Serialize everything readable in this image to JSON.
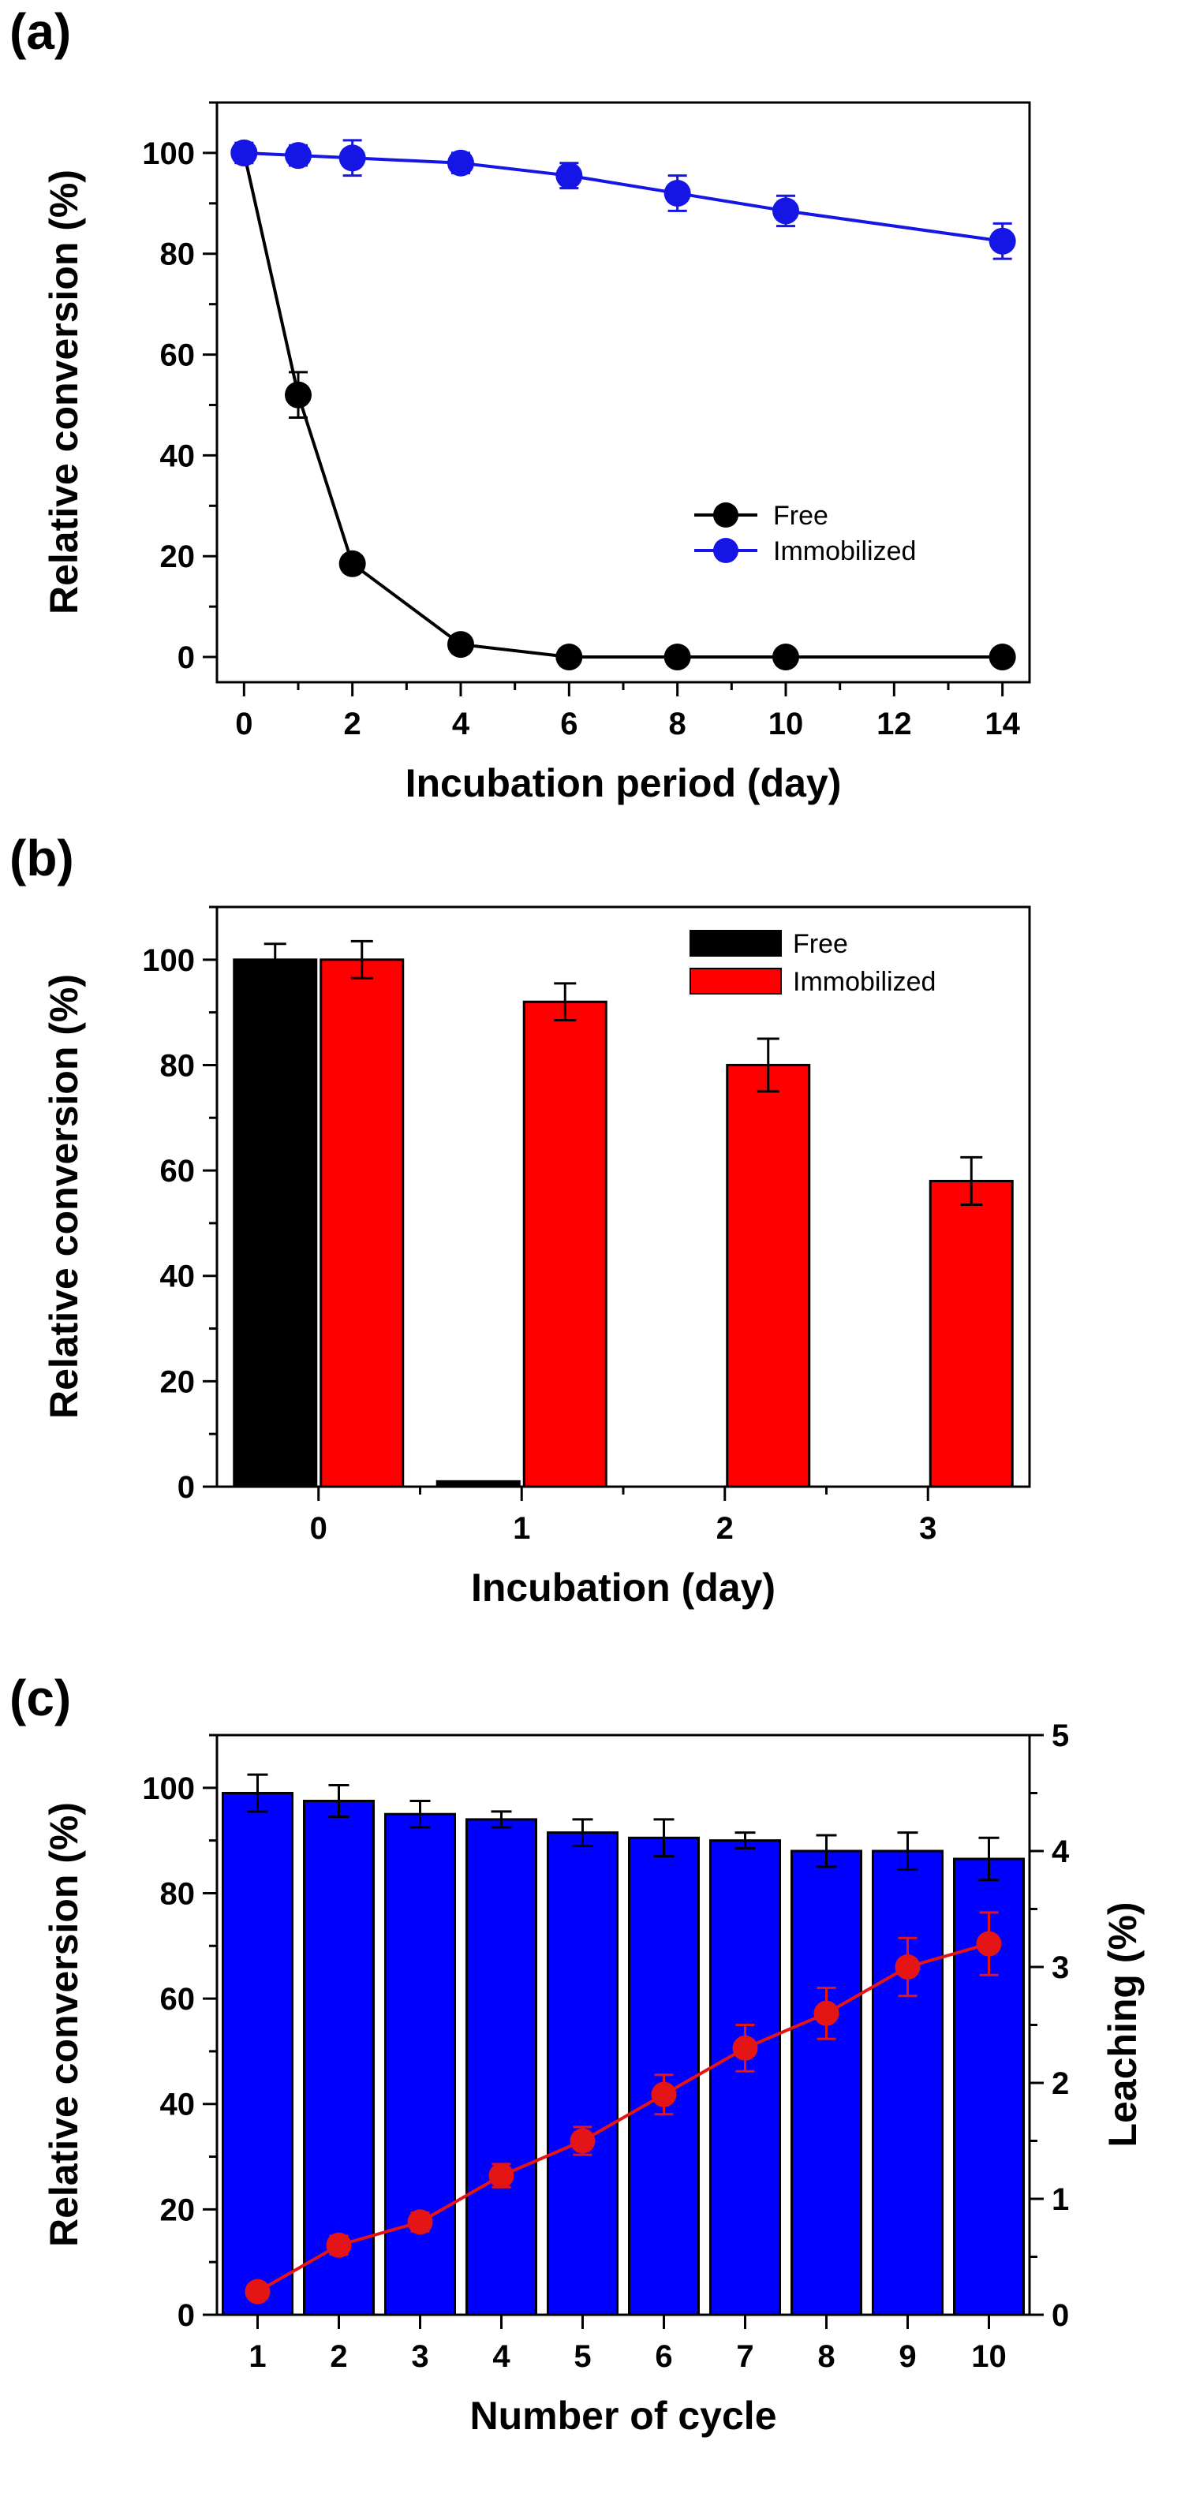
{
  "figure": {
    "panels": [
      {
        "label": "(a)",
        "type": "line",
        "xlabel": "Incubation period (day)",
        "ylabel": "Relative conversion (%)",
        "xlim": [
          -0.5,
          14.5
        ],
        "ylim": [
          -5,
          110
        ],
        "xticks": [
          0,
          2,
          4,
          6,
          8,
          10,
          12,
          14
        ],
        "yticks": [
          0,
          20,
          40,
          60,
          80,
          100
        ],
        "legend_position": "bottom-right",
        "series": [
          {
            "name": "Free",
            "color": "#000000",
            "x": [
              0,
              1,
              2,
              4,
              6,
              8,
              10,
              14
            ],
            "y": [
              100,
              52,
              18.5,
              2.5,
              0,
              0,
              0,
              0
            ],
            "err": [
              1.5,
              4.5,
              1.5,
              1,
              0.5,
              0.5,
              0.5,
              0.5
            ]
          },
          {
            "name": "Immobilized",
            "color": "#1515e6",
            "x": [
              0,
              1,
              2,
              4,
              6,
              8,
              10,
              14
            ],
            "y": [
              100,
              99.5,
              99,
              98,
              95.5,
              92,
              88.5,
              82.5
            ],
            "err": [
              2,
              2,
              3.5,
              2,
              2.5,
              3.5,
              3,
              3.5
            ]
          }
        ]
      },
      {
        "label": "(b)",
        "type": "bar",
        "xlabel": "Incubation (day)",
        "ylabel": "Relative conversion (%)",
        "categories": [
          "0",
          "1",
          "2",
          "3"
        ],
        "ylim": [
          0,
          110
        ],
        "yticks": [
          0,
          20,
          40,
          60,
          80,
          100
        ],
        "legend_position": "top-right",
        "series": [
          {
            "name": "Free",
            "color": "#000000",
            "values": [
              100,
              1,
              0,
              0
            ],
            "err": [
              3,
              0,
              0,
              0
            ]
          },
          {
            "name": "Immobilized",
            "color": "#ff0000",
            "values": [
              100,
              92,
              80,
              58
            ],
            "err": [
              3.5,
              3.5,
              5,
              4.5
            ]
          }
        ]
      },
      {
        "label": "(c)",
        "type": "bar",
        "xlabel": "Number of cycle",
        "ylabel": "Relative conversion (%)",
        "y2label": "Leaching (%)",
        "categories": [
          "1",
          "2",
          "3",
          "4",
          "5",
          "6",
          "7",
          "8",
          "9",
          "10"
        ],
        "ylim": [
          0,
          110
        ],
        "yticks": [
          0,
          20,
          40,
          60,
          80,
          100
        ],
        "y2lim": [
          0,
          5
        ],
        "y2ticks": [
          0,
          1,
          2,
          3,
          4,
          5
        ],
        "bar_series": {
          "color": "#0000ff",
          "values": [
            99,
            97.5,
            95,
            94,
            91.5,
            90.5,
            90,
            88,
            88,
            86.5
          ],
          "err": [
            3.5,
            3,
            2.5,
            1.5,
            2.5,
            3.5,
            1.5,
            3,
            3.5,
            4
          ]
        },
        "line_series": {
          "color": "#e61515",
          "values": [
            0.2,
            0.6,
            0.8,
            1.2,
            1.5,
            1.9,
            2.3,
            2.6,
            3.0,
            3.2
          ],
          "err": [
            0.05,
            0.08,
            0.08,
            0.1,
            0.12,
            0.17,
            0.2,
            0.22,
            0.25,
            0.27
          ]
        }
      }
    ]
  }
}
